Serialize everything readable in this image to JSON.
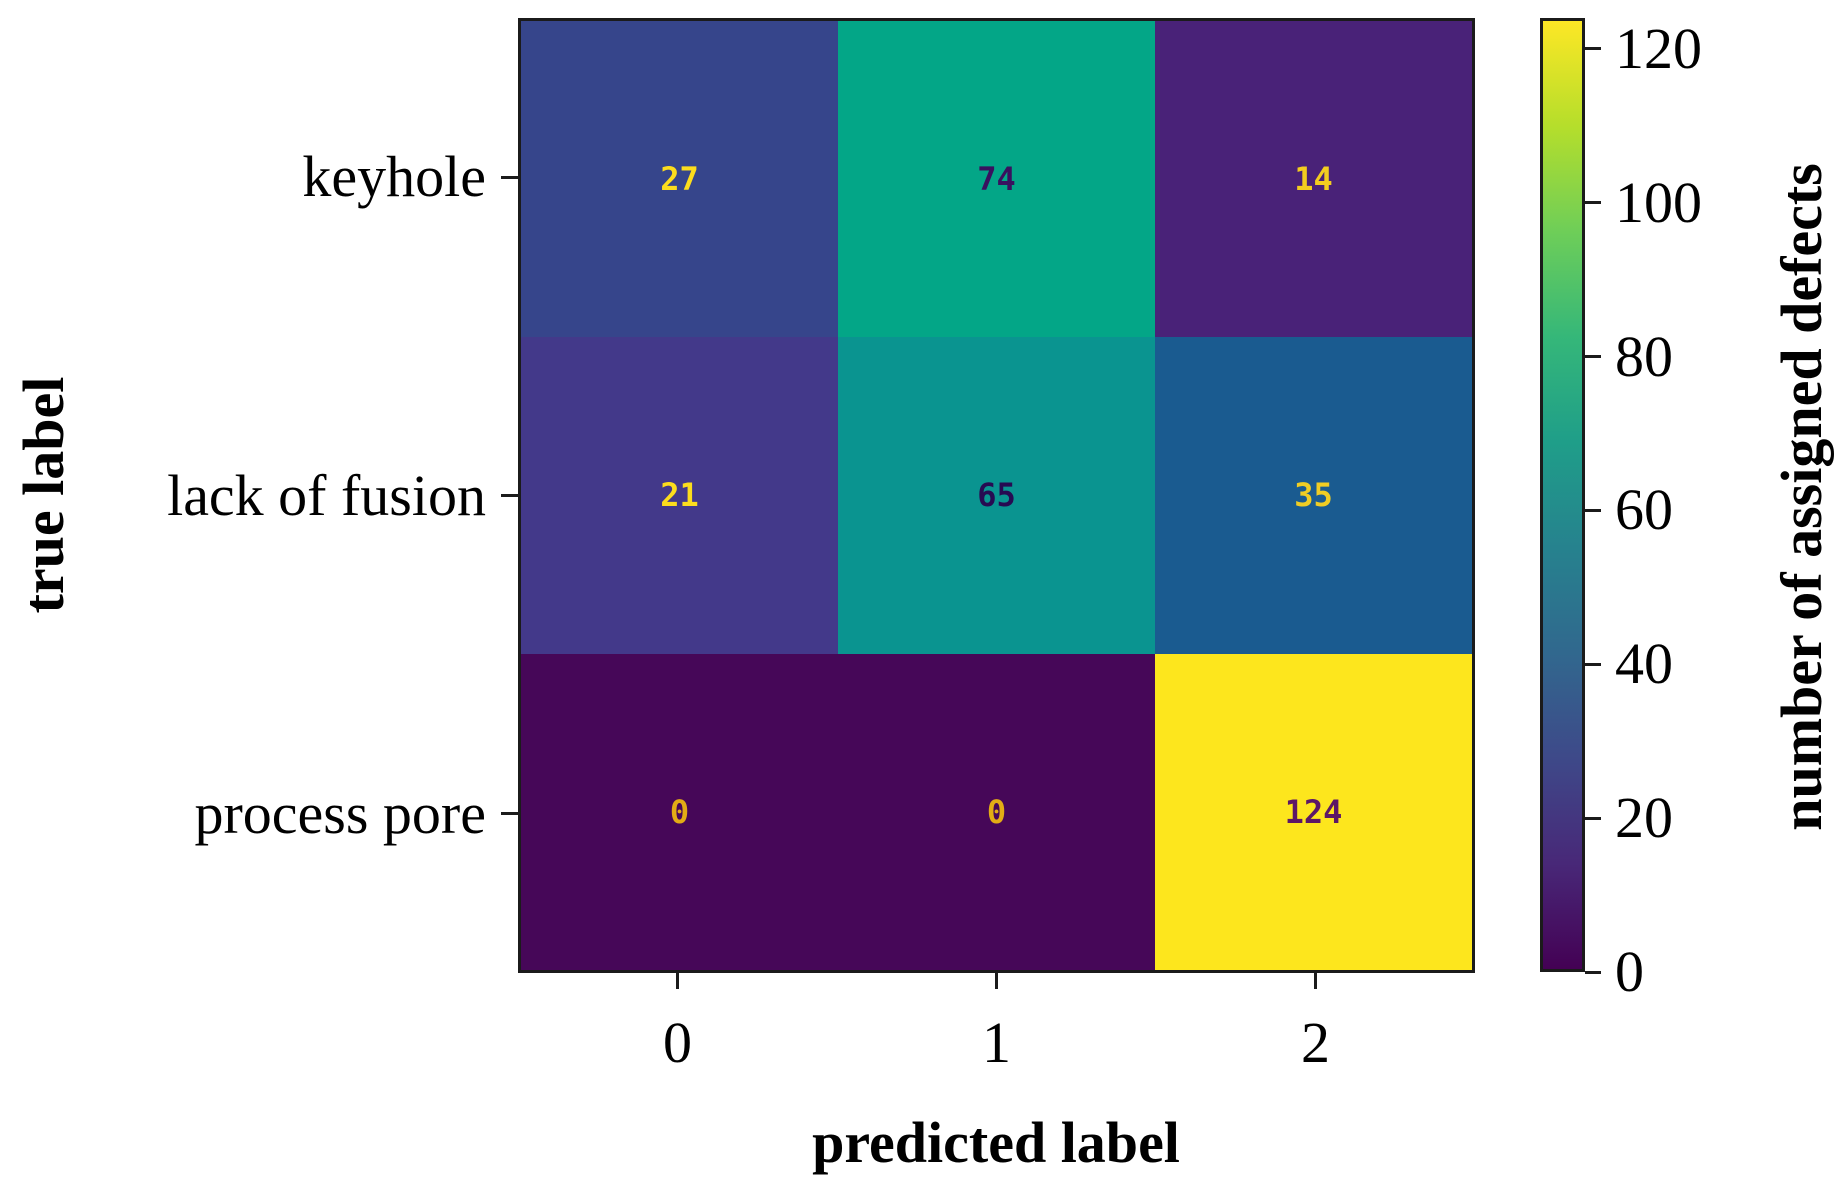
{
  "chart_data": {
    "type": "heatmap",
    "title": "",
    "xlabel": "predicted label",
    "ylabel": "true label",
    "x_tick_labels": [
      "0",
      "1",
      "2"
    ],
    "y_tick_labels": [
      "keyhole",
      "lack of fusion",
      "process pore"
    ],
    "values": [
      [
        27,
        74,
        14
      ],
      [
        21,
        65,
        35
      ],
      [
        0,
        0,
        124
      ]
    ],
    "vmin": 0,
    "vmax": 124,
    "colormap": "viridis",
    "grid": false,
    "legend_position": "right-colorbar",
    "colorbar": {
      "label": "number of assigned defects",
      "tick_labels": [
        "0",
        "20",
        "40",
        "60",
        "80",
        "100",
        "120"
      ],
      "tick_values": [
        0,
        20,
        40,
        60,
        80,
        100,
        120
      ]
    }
  },
  "cells": [
    [
      {
        "value": "27",
        "bg": "#36458b",
        "fg": "#fcdd1d"
      },
      {
        "value": "74",
        "bg": "#03a687",
        "fg": "#39115f"
      },
      {
        "value": "14",
        "bg": "#492278",
        "fg": "#f3cd1f"
      }
    ],
    [
      {
        "value": "21",
        "bg": "#43398a",
        "fg": "#fcdd1d"
      },
      {
        "value": "65",
        "bg": "#0a9490",
        "fg": "#270b52"
      },
      {
        "value": "35",
        "bg": "#1a5b90",
        "fg": "#f0cd24"
      }
    ],
    [
      {
        "value": "0",
        "bg": "#460758",
        "fg": "#e3ac15"
      },
      {
        "value": "0",
        "bg": "#460758",
        "fg": "#e3ac15"
      },
      {
        "value": "124",
        "bg": "#fde61d",
        "fg": "#5d1766"
      }
    ]
  ],
  "colors": {
    "background": "#ffffff",
    "axis": "#1b1b1b",
    "label_text": "#000000",
    "viridis_stops": [
      "#440154",
      "#482878",
      "#3e4989",
      "#31688e",
      "#26828e",
      "#1f9e89",
      "#35b779",
      "#6ece58",
      "#b5de2b",
      "#fde725"
    ]
  }
}
